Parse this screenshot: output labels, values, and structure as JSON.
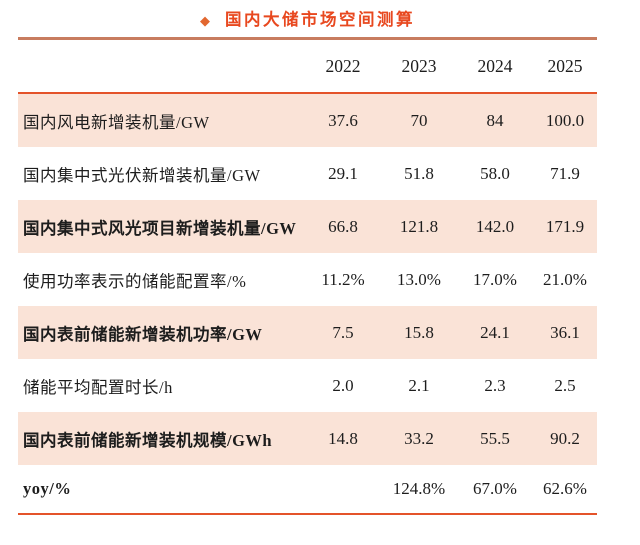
{
  "title": {
    "bullet": "◆",
    "text": "国内大储市场空间测算"
  },
  "table": {
    "columns": [
      "2022",
      "2023",
      "2024",
      "2025"
    ],
    "rows": [
      {
        "label": "国内风电新增装机量/GW",
        "values": [
          "37.6",
          "70",
          "84",
          "100.0"
        ],
        "bold": false,
        "shaded": true
      },
      {
        "label": "国内集中式光伏新增装机量/GW",
        "values": [
          "29.1",
          "51.8",
          "58.0",
          "71.9"
        ],
        "bold": false,
        "shaded": false
      },
      {
        "label": "国内集中式风光项目新增装机量/GW",
        "values": [
          "66.8",
          "121.8",
          "142.0",
          "171.9"
        ],
        "bold": true,
        "shaded": true
      },
      {
        "label": "使用功率表示的储能配置率/%",
        "values": [
          "11.2%",
          "13.0%",
          "17.0%",
          "21.0%"
        ],
        "bold": false,
        "shaded": false
      },
      {
        "label": "国内表前储能新增装机功率/GW",
        "values": [
          "7.5",
          "15.8",
          "24.1",
          "36.1"
        ],
        "bold": true,
        "shaded": true
      },
      {
        "label": "储能平均配置时长/h",
        "values": [
          "2.0",
          "2.1",
          "2.3",
          "2.5"
        ],
        "bold": false,
        "shaded": false
      },
      {
        "label": "国内表前储能新增装机规模/GWh",
        "values": [
          "14.8",
          "33.2",
          "55.5",
          "90.2"
        ],
        "bold": true,
        "shaded": true
      },
      {
        "label": "yoy/%",
        "values": [
          "",
          "124.8%",
          "67.0%",
          "62.6%"
        ],
        "bold": true,
        "shaded": false
      }
    ]
  },
  "colors": {
    "title_red": "#e8481f",
    "bullet_orange": "#e2672f",
    "rule_orange": "#e4532a",
    "title_underline": "#c87c5f",
    "row_shade_pink": "#fae3d7",
    "text": "#1d1d1d"
  }
}
